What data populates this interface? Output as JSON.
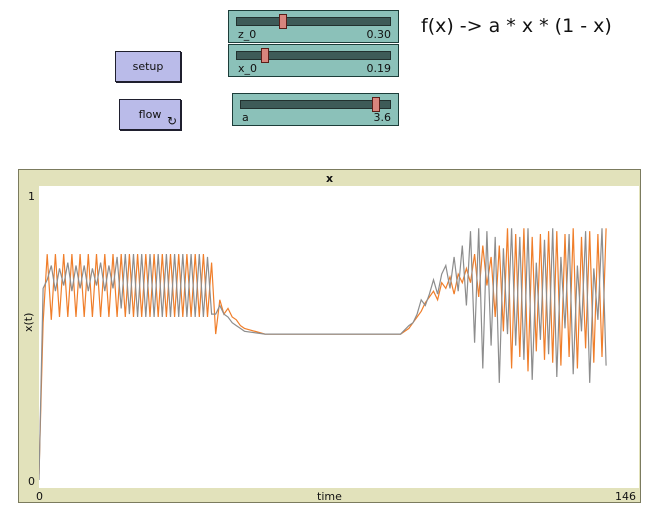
{
  "buttons": {
    "setup": {
      "label": "setup"
    },
    "flow": {
      "label": "flow",
      "forever_icon": "↻"
    }
  },
  "sliders": [
    {
      "name": "z_0",
      "value_text": "0.30",
      "value": 0.3,
      "min": 0,
      "max": 1
    },
    {
      "name": "x_0",
      "value_text": "0.19",
      "value": 0.19,
      "min": 0,
      "max": 1
    },
    {
      "name": "a",
      "value_text": "3.6",
      "value": 3.6,
      "min": 0,
      "max": 4
    }
  ],
  "note": "f(x) -> a * x * (1 - x)",
  "plot": {
    "title": "x",
    "xlabel": "time",
    "ylabel": "x(t)",
    "x_min_text": "0",
    "x_max_text": "146",
    "y_min_text": "0",
    "y_max_text": "1"
  },
  "chart_data": {
    "type": "line",
    "title": "x",
    "xlabel": "time",
    "ylabel": "x(t)",
    "xlim": [
      0,
      146
    ],
    "ylim": [
      0,
      1
    ],
    "series": [
      {
        "color": "#f07e2a",
        "values": [
          [
            0,
            0.02
          ],
          [
            1,
            0.55
          ],
          [
            2,
            0.79
          ],
          [
            3,
            0.56
          ],
          [
            4,
            0.79
          ],
          [
            5,
            0.57
          ],
          [
            6,
            0.79
          ],
          [
            7,
            0.57
          ],
          [
            8,
            0.79
          ],
          [
            9,
            0.57
          ],
          [
            10,
            0.79
          ],
          [
            11,
            0.57
          ],
          [
            12,
            0.79
          ],
          [
            13,
            0.57
          ],
          [
            14,
            0.79
          ],
          [
            15,
            0.57
          ],
          [
            16,
            0.79
          ],
          [
            17,
            0.57
          ],
          [
            18,
            0.79
          ],
          [
            19,
            0.57
          ],
          [
            20,
            0.79
          ],
          [
            21,
            0.57
          ],
          [
            22,
            0.79
          ],
          [
            23,
            0.57
          ],
          [
            24,
            0.79
          ],
          [
            25,
            0.57
          ],
          [
            26,
            0.79
          ],
          [
            27,
            0.57
          ],
          [
            28,
            0.79
          ],
          [
            29,
            0.57
          ],
          [
            30,
            0.79
          ],
          [
            31,
            0.57
          ],
          [
            32,
            0.79
          ],
          [
            33,
            0.57
          ],
          [
            34,
            0.79
          ],
          [
            35,
            0.57
          ],
          [
            36,
            0.79
          ],
          [
            37,
            0.57
          ],
          [
            38,
            0.79
          ],
          [
            39,
            0.57
          ],
          [
            40,
            0.79
          ],
          [
            41,
            0.57
          ],
          [
            42,
            0.76
          ],
          [
            43,
            0.51
          ],
          [
            44,
            0.63
          ],
          [
            45,
            0.58
          ],
          [
            46,
            0.6
          ],
          [
            47,
            0.57
          ],
          [
            48,
            0.56
          ],
          [
            49,
            0.54
          ],
          [
            50,
            0.53
          ],
          [
            55,
            0.51
          ],
          [
            60,
            0.51
          ],
          [
            65,
            0.51
          ],
          [
            70,
            0.51
          ],
          [
            75,
            0.51
          ],
          [
            80,
            0.51
          ],
          [
            85,
            0.51
          ],
          [
            88,
            0.51
          ],
          [
            90,
            0.53
          ],
          [
            91,
            0.55
          ],
          [
            92,
            0.57
          ],
          [
            93,
            0.59
          ],
          [
            94,
            0.62
          ],
          [
            95,
            0.64
          ],
          [
            96,
            0.66
          ],
          [
            97,
            0.63
          ],
          [
            98,
            0.69
          ],
          [
            99,
            0.67
          ],
          [
            100,
            0.71
          ],
          [
            101,
            0.65
          ],
          [
            102,
            0.72
          ],
          [
            103,
            0.69
          ],
          [
            104,
            0.74
          ],
          [
            105,
            0.69
          ],
          [
            106,
            0.79
          ],
          [
            107,
            0.64
          ],
          [
            108,
            0.82
          ],
          [
            109,
            0.68
          ],
          [
            110,
            0.78
          ],
          [
            111,
            0.57
          ],
          [
            112,
            0.82
          ],
          [
            113,
            0.52
          ],
          [
            114,
            0.88
          ],
          [
            115,
            0.39
          ],
          [
            116,
            0.86
          ],
          [
            117,
            0.43
          ],
          [
            118,
            0.88
          ],
          [
            119,
            0.38
          ],
          [
            120,
            0.85
          ],
          [
            121,
            0.45
          ],
          [
            122,
            0.86
          ],
          [
            123,
            0.42
          ],
          [
            124,
            0.87
          ],
          [
            125,
            0.41
          ],
          [
            126,
            0.87
          ],
          [
            127,
            0.4
          ],
          [
            128,
            0.86
          ],
          [
            129,
            0.43
          ],
          [
            130,
            0.88
          ],
          [
            131,
            0.39
          ],
          [
            132,
            0.85
          ],
          [
            133,
            0.46
          ],
          [
            134,
            0.87
          ],
          [
            135,
            0.41
          ],
          [
            136,
            0.86
          ],
          [
            137,
            0.43
          ],
          [
            138,
            0.88
          ]
        ]
      },
      {
        "color": "#8d8d8d",
        "values": [
          [
            0,
            0.0
          ],
          [
            1,
            0.67
          ],
          [
            2,
            0.7
          ],
          [
            3,
            0.75
          ],
          [
            4,
            0.66
          ],
          [
            5,
            0.74
          ],
          [
            6,
            0.68
          ],
          [
            7,
            0.76
          ],
          [
            8,
            0.66
          ],
          [
            9,
            0.75
          ],
          [
            10,
            0.67
          ],
          [
            11,
            0.75
          ],
          [
            12,
            0.66
          ],
          [
            13,
            0.74
          ],
          [
            14,
            0.68
          ],
          [
            15,
            0.76
          ],
          [
            16,
            0.66
          ],
          [
            17,
            0.75
          ],
          [
            18,
            0.67
          ],
          [
            19,
            0.78
          ],
          [
            20,
            0.6
          ],
          [
            21,
            0.79
          ],
          [
            22,
            0.58
          ],
          [
            23,
            0.79
          ],
          [
            24,
            0.57
          ],
          [
            25,
            0.79
          ],
          [
            26,
            0.57
          ],
          [
            27,
            0.79
          ],
          [
            28,
            0.57
          ],
          [
            29,
            0.79
          ],
          [
            30,
            0.57
          ],
          [
            31,
            0.79
          ],
          [
            32,
            0.57
          ],
          [
            33,
            0.79
          ],
          [
            34,
            0.57
          ],
          [
            35,
            0.79
          ],
          [
            36,
            0.57
          ],
          [
            37,
            0.79
          ],
          [
            38,
            0.57
          ],
          [
            39,
            0.79
          ],
          [
            40,
            0.57
          ],
          [
            41,
            0.78
          ],
          [
            42,
            0.58
          ],
          [
            43,
            0.58
          ],
          [
            44,
            0.61
          ],
          [
            45,
            0.58
          ],
          [
            46,
            0.57
          ],
          [
            47,
            0.55
          ],
          [
            48,
            0.54
          ],
          [
            49,
            0.53
          ],
          [
            50,
            0.52
          ],
          [
            55,
            0.51
          ],
          [
            60,
            0.51
          ],
          [
            65,
            0.51
          ],
          [
            70,
            0.51
          ],
          [
            75,
            0.51
          ],
          [
            80,
            0.51
          ],
          [
            85,
            0.51
          ],
          [
            88,
            0.51
          ],
          [
            90,
            0.54
          ],
          [
            91,
            0.55
          ],
          [
            92,
            0.58
          ],
          [
            93,
            0.63
          ],
          [
            94,
            0.61
          ],
          [
            95,
            0.65
          ],
          [
            96,
            0.7
          ],
          [
            97,
            0.65
          ],
          [
            98,
            0.72
          ],
          [
            99,
            0.75
          ],
          [
            100,
            0.67
          ],
          [
            101,
            0.78
          ],
          [
            102,
            0.66
          ],
          [
            103,
            0.82
          ],
          [
            104,
            0.61
          ],
          [
            105,
            0.87
          ],
          [
            106,
            0.48
          ],
          [
            107,
            0.88
          ],
          [
            108,
            0.39
          ],
          [
            109,
            0.87
          ],
          [
            110,
            0.47
          ],
          [
            111,
            0.85
          ],
          [
            112,
            0.34
          ],
          [
            113,
            0.81
          ],
          [
            114,
            0.51
          ],
          [
            115,
            0.88
          ],
          [
            116,
            0.47
          ],
          [
            117,
            0.85
          ],
          [
            118,
            0.42
          ],
          [
            119,
            0.88
          ],
          [
            120,
            0.35
          ],
          [
            121,
            0.76
          ],
          [
            122,
            0.49
          ],
          [
            123,
            0.84
          ],
          [
            124,
            0.44
          ],
          [
            125,
            0.88
          ],
          [
            126,
            0.36
          ],
          [
            127,
            0.78
          ],
          [
            128,
            0.53
          ],
          [
            129,
            0.86
          ],
          [
            130,
            0.37
          ],
          [
            131,
            0.75
          ],
          [
            132,
            0.52
          ],
          [
            133,
            0.87
          ],
          [
            134,
            0.34
          ],
          [
            135,
            0.74
          ],
          [
            136,
            0.56
          ],
          [
            137,
            0.88
          ],
          [
            138,
            0.4
          ]
        ]
      }
    ]
  }
}
